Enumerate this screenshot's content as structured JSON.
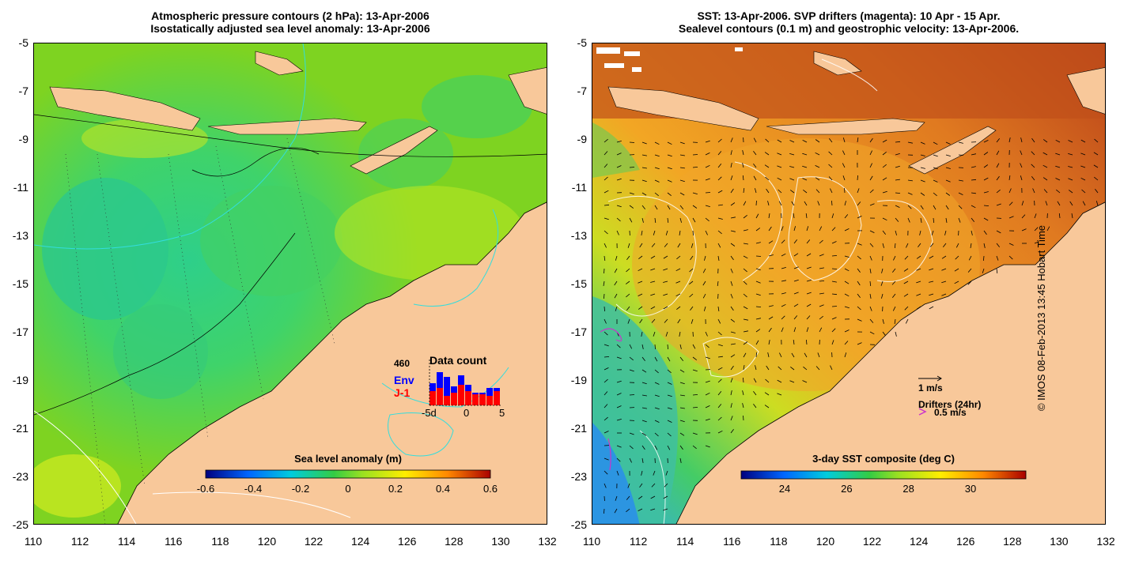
{
  "left_panel": {
    "title_line1": "Atmospheric pressure contours (2 hPa): 13-Apr-2006",
    "title_line2": "Isostatically adjusted sea level anomaly: 13-Apr-2006",
    "colorbar": {
      "title": "Sea level anomaly (m)",
      "ticks": [
        "-0.6",
        "-0.4",
        "-0.2",
        "0",
        "0.2",
        "0.4",
        "0.6"
      ]
    },
    "data_count": {
      "title": "Data count",
      "max_label": "460",
      "series_env": "Env",
      "series_j1": "J-1",
      "x_ticks": [
        "-5d",
        "0",
        "5"
      ],
      "env_color": "#0000ff",
      "j1_color": "#ff0000"
    }
  },
  "right_panel": {
    "title_line1": "SST: 13-Apr-2006. SVP drifters (magenta): 10 Apr - 15 Apr.",
    "title_line2": "Sealevel contours (0.1 m) and geostrophic velocity: 13-Apr-2006.",
    "colorbar": {
      "title": "3-day SST composite (deg C)",
      "ticks": [
        "24",
        "26",
        "28",
        "30"
      ]
    },
    "velocity_scale_label": "1 m/s",
    "drifters_label": "Drifters (24hr)",
    "drifter_speed_label": "0.5 m/s",
    "drifter_color": "#cc33cc"
  },
  "axes": {
    "y_ticks": [
      "-5",
      "-7",
      "-9",
      "-11",
      "-13",
      "-15",
      "-17",
      "-19",
      "-21",
      "-23",
      "-25"
    ],
    "x_ticks": [
      "110",
      "112",
      "114",
      "116",
      "118",
      "120",
      "122",
      "124",
      "126",
      "128",
      "130",
      "132"
    ]
  },
  "credit": "© IMOS 08-Feb-2013 13:45 Hobart Time",
  "colors": {
    "land": "#f8c89a",
    "sla_background": "#7ed321",
    "sst_background": "#e8922a"
  }
}
